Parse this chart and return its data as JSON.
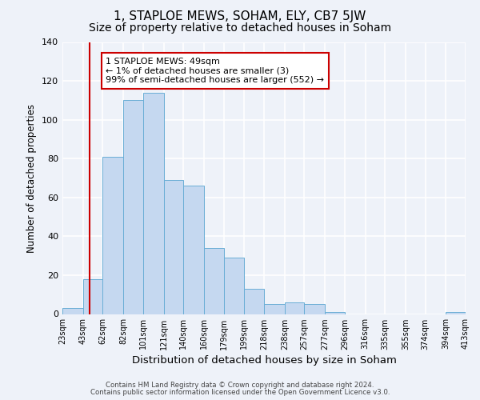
{
  "title": "1, STAPLOE MEWS, SOHAM, ELY, CB7 5JW",
  "subtitle": "Size of property relative to detached houses in Soham",
  "xlabel": "Distribution of detached houses by size in Soham",
  "ylabel": "Number of detached properties",
  "bar_edges": [
    23,
    43,
    62,
    82,
    101,
    121,
    140,
    160,
    179,
    199,
    218,
    238,
    257,
    277,
    296,
    316,
    335,
    355,
    374,
    394,
    413
  ],
  "bar_heights": [
    3,
    18,
    81,
    110,
    114,
    69,
    66,
    34,
    29,
    13,
    5,
    6,
    5,
    1,
    0,
    0,
    0,
    0,
    0,
    1
  ],
  "bar_color": "#c5d8f0",
  "bar_edge_color": "#6aaed6",
  "ylim": [
    0,
    140
  ],
  "yticks": [
    0,
    20,
    40,
    60,
    80,
    100,
    120,
    140
  ],
  "vline_x": 49,
  "vline_color": "#cc0000",
  "annotation_text": "1 STAPLOE MEWS: 49sqm\n← 1% of detached houses are smaller (3)\n99% of semi-detached houses are larger (552) →",
  "annotation_box_color": "#ffffff",
  "annotation_box_edge": "#cc0000",
  "title_fontsize": 11,
  "subtitle_fontsize": 10,
  "xlabel_fontsize": 9.5,
  "ylabel_fontsize": 8.5,
  "annotation_fontsize": 8,
  "tick_labels": [
    "23sqm",
    "43sqm",
    "62sqm",
    "82sqm",
    "101sqm",
    "121sqm",
    "140sqm",
    "160sqm",
    "179sqm",
    "199sqm",
    "218sqm",
    "238sqm",
    "257sqm",
    "277sqm",
    "296sqm",
    "316sqm",
    "335sqm",
    "355sqm",
    "374sqm",
    "394sqm",
    "413sqm"
  ],
  "footer_line1": "Contains HM Land Registry data © Crown copyright and database right 2024.",
  "footer_line2": "Contains public sector information licensed under the Open Government Licence v3.0.",
  "background_color": "#eef2f9",
  "grid_color": "#ffffff"
}
